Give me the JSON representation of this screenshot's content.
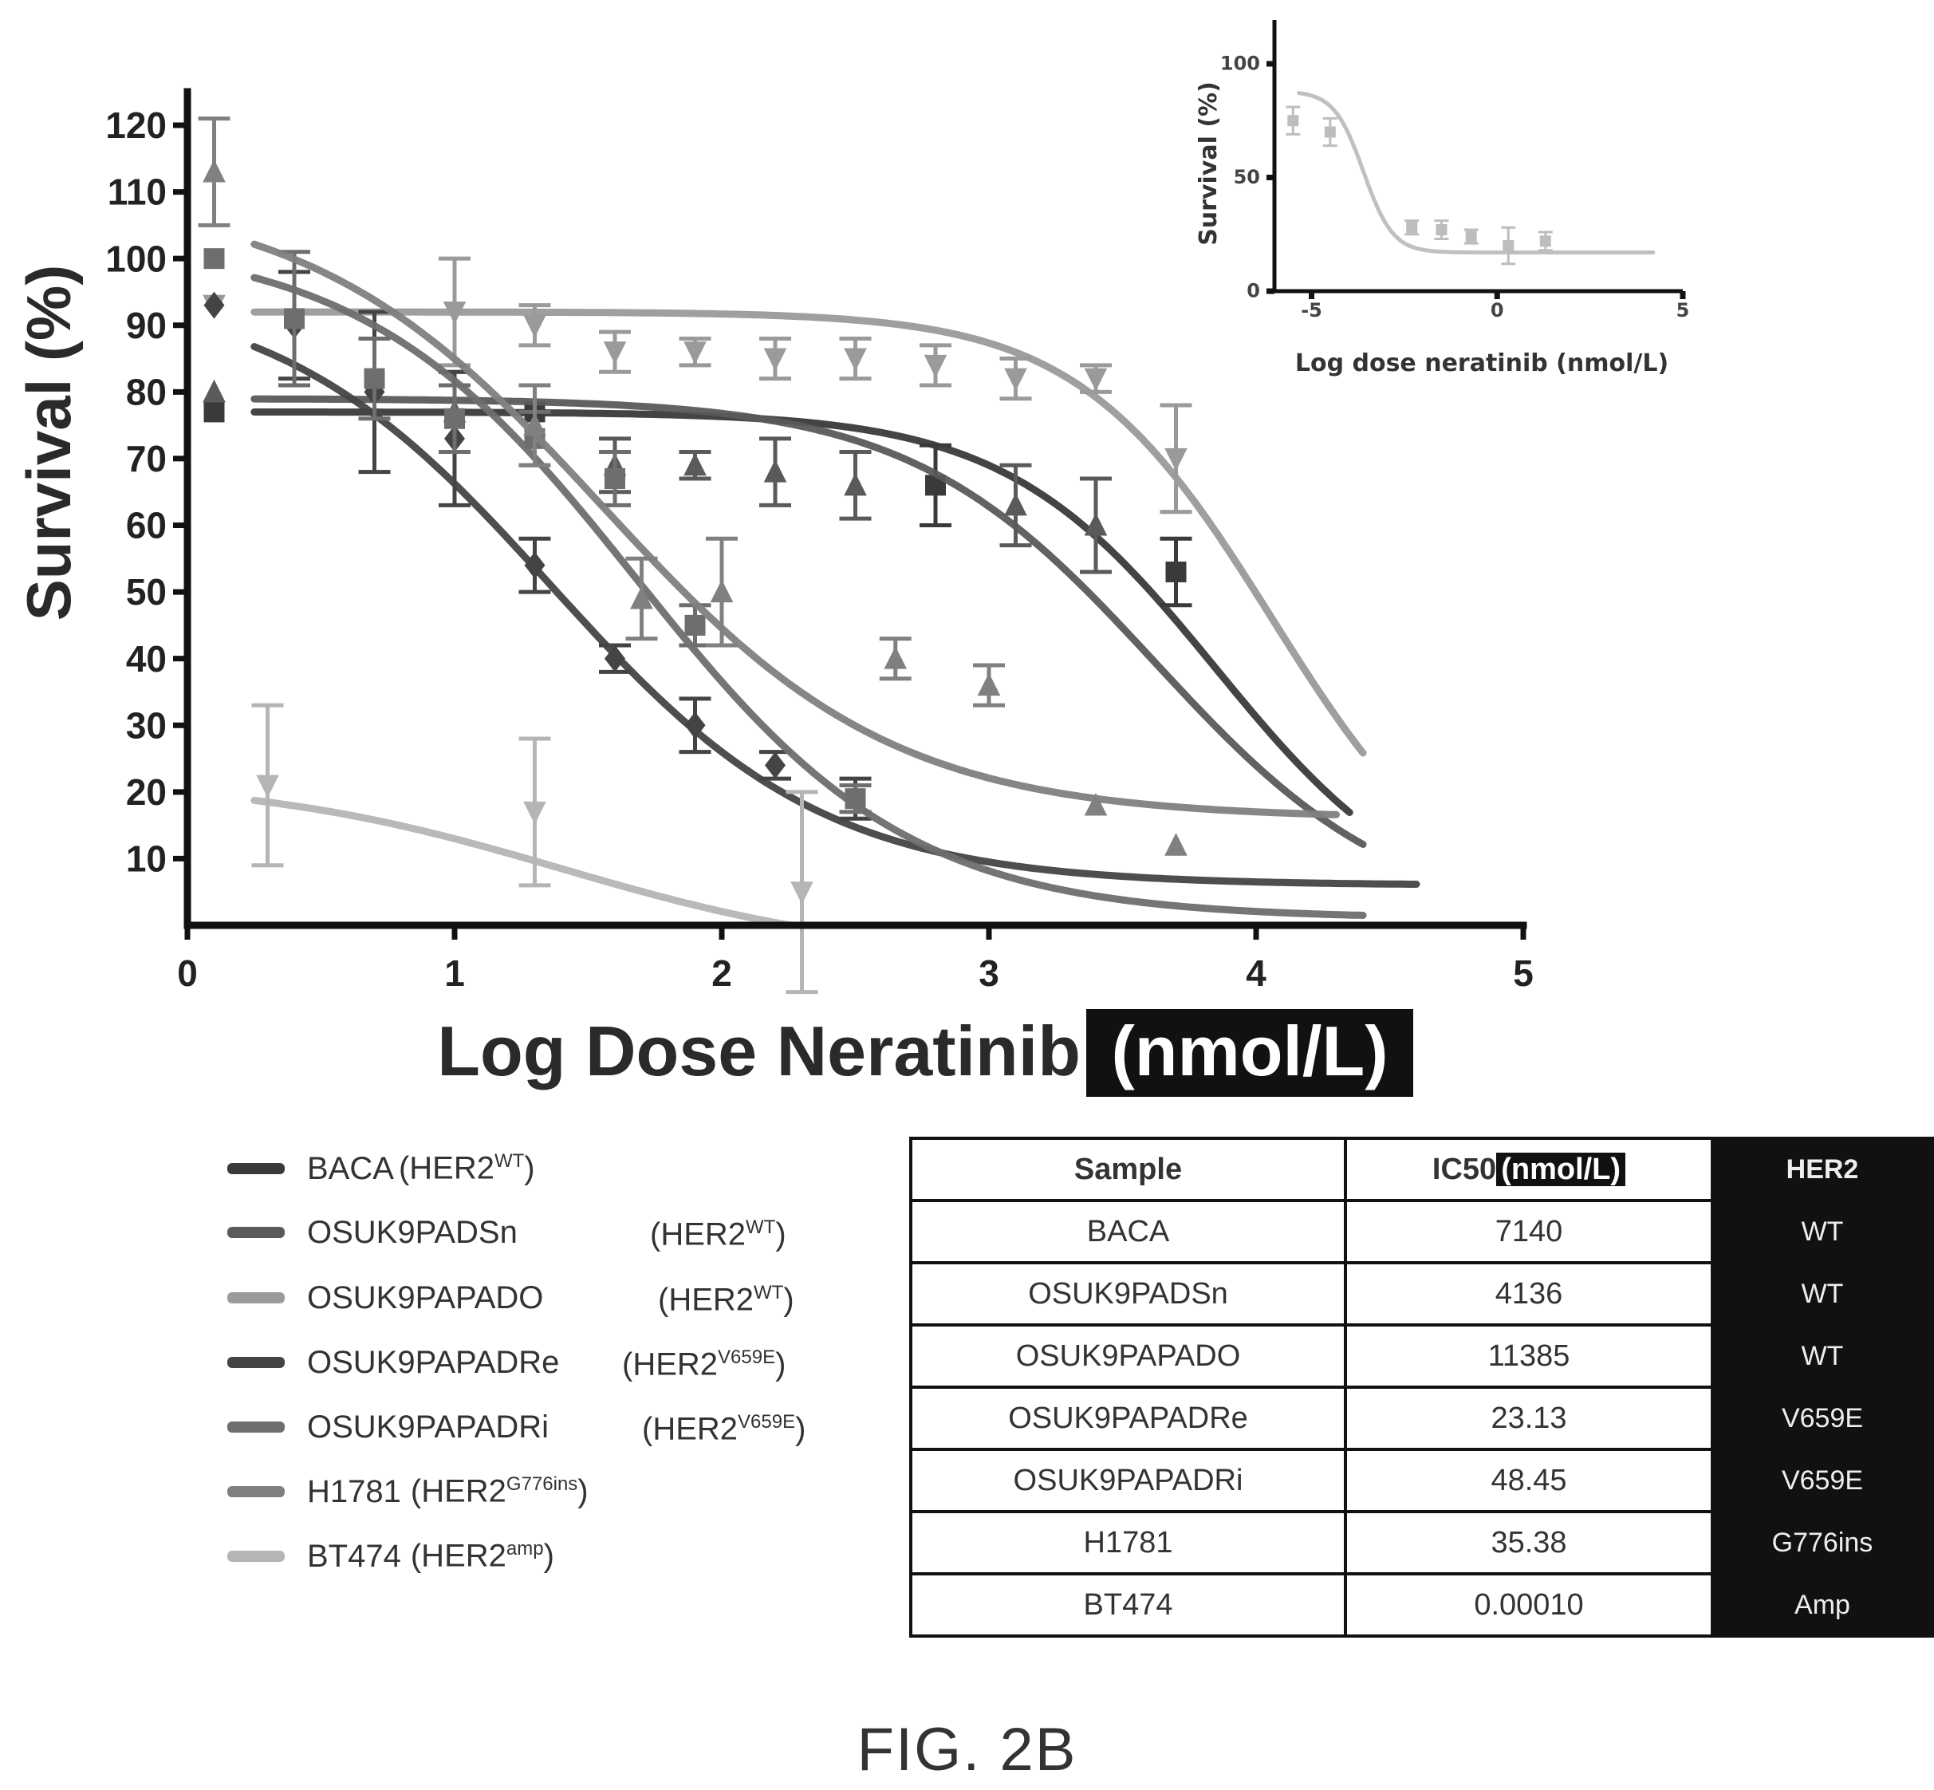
{
  "figure_label": "FIG. 2B",
  "chart_data": [
    {
      "type": "line",
      "xlabel": "Log Dose Neratinib",
      "xlabel_highlight": "(nmol/L)",
      "ylabel": "Survival (%)",
      "xlim": [
        0,
        5
      ],
      "ylim": [
        0,
        120
      ],
      "x_ticks": [
        "0",
        "1",
        "2",
        "3",
        "4",
        "5"
      ],
      "y_ticks": [
        "10",
        "20",
        "30",
        "40",
        "50",
        "60",
        "70",
        "80",
        "90",
        "100",
        "110",
        "120"
      ],
      "series": [
        {
          "name": "BACA",
          "color": "#3a3a3a",
          "bottom": 0,
          "top": 77,
          "logic50": 3.85,
          "hill": 1.1,
          "x_end": 4.35,
          "points": [
            {
              "x": 0.1,
              "y": 77,
              "err": 0
            },
            {
              "x": 1.3,
              "y": 77,
              "err": 0
            },
            {
              "x": 2.8,
              "y": 66,
              "err": 6
            },
            {
              "x": 3.7,
              "y": 53,
              "err": 5
            }
          ]
        },
        {
          "name": "OSUK9PADSn",
          "color": "#5a5a5a",
          "bottom": 0,
          "top": 79,
          "logic50": 3.62,
          "hill": 0.95,
          "x_end": 4.4,
          "points": [
            {
              "x": 0.1,
              "y": 80,
              "err": 0
            },
            {
              "x": 1.0,
              "y": 77,
              "err": 6
            },
            {
              "x": 1.6,
              "y": 69,
              "err": 4
            },
            {
              "x": 1.9,
              "y": 69,
              "err": 2
            },
            {
              "x": 2.2,
              "y": 68,
              "err": 5
            },
            {
              "x": 2.5,
              "y": 66,
              "err": 5
            },
            {
              "x": 3.1,
              "y": 63,
              "err": 6
            },
            {
              "x": 3.4,
              "y": 60,
              "err": 7
            }
          ]
        },
        {
          "name": "OSUK9PAPADO",
          "color": "#9a9a9a",
          "bottom": 0,
          "top": 92,
          "logic50": 4.06,
          "hill": 1.2,
          "x_end": 4.4,
          "points": [
            {
              "x": 0.1,
              "y": 93,
              "err": 0
            },
            {
              "x": 1.0,
              "y": 92,
              "err": 8
            },
            {
              "x": 1.3,
              "y": 90,
              "err": 3
            },
            {
              "x": 1.6,
              "y": 86,
              "err": 3
            },
            {
              "x": 1.9,
              "y": 86,
              "err": 2
            },
            {
              "x": 2.2,
              "y": 85,
              "err": 3
            },
            {
              "x": 2.5,
              "y": 85,
              "err": 3
            },
            {
              "x": 2.8,
              "y": 84,
              "err": 3
            },
            {
              "x": 3.1,
              "y": 82,
              "err": 3
            },
            {
              "x": 3.4,
              "y": 82,
              "err": 2
            },
            {
              "x": 3.7,
              "y": 70,
              "err": 8
            }
          ]
        },
        {
          "name": "OSUK9PAPADRe",
          "color": "#444444",
          "bottom": 6,
          "top": 96,
          "logic50": 1.36,
          "hill": 0.85,
          "x_end": 4.6,
          "points": [
            {
              "x": 0.1,
              "y": 93,
              "err": 0
            },
            {
              "x": 0.4,
              "y": 90,
              "err": 8
            },
            {
              "x": 0.7,
              "y": 80,
              "err": 12
            },
            {
              "x": 1.0,
              "y": 73,
              "err": 10
            },
            {
              "x": 1.3,
              "y": 54,
              "err": 4
            },
            {
              "x": 1.6,
              "y": 40,
              "err": 2
            },
            {
              "x": 1.9,
              "y": 30,
              "err": 4
            },
            {
              "x": 2.2,
              "y": 24,
              "err": 2
            },
            {
              "x": 2.5,
              "y": 19,
              "err": 3
            }
          ]
        },
        {
          "name": "OSUK9PAPADRi",
          "color": "#6e6e6e",
          "bottom": 1,
          "top": 103,
          "logic50": 1.68,
          "hill": 0.85,
          "x_end": 4.4,
          "points": [
            {
              "x": 0.1,
              "y": 100,
              "err": 0
            },
            {
              "x": 0.4,
              "y": 91,
              "err": 10
            },
            {
              "x": 0.7,
              "y": 82,
              "err": 6
            },
            {
              "x": 1.0,
              "y": 76,
              "err": 5
            },
            {
              "x": 1.3,
              "y": 73,
              "err": 4
            },
            {
              "x": 1.6,
              "y": 67,
              "err": 4
            },
            {
              "x": 1.9,
              "y": 45,
              "err": 3
            },
            {
              "x": 2.5,
              "y": 19,
              "err": 2
            }
          ]
        },
        {
          "name": "H1781",
          "color": "#808080",
          "bottom": 16,
          "top": 110,
          "logic50": 1.55,
          "hill": 0.8,
          "x_end": 4.3,
          "points": [
            {
              "x": 0.1,
              "y": 113,
              "err": 8
            },
            {
              "x": 1.3,
              "y": 75,
              "err": 6
            },
            {
              "x": 1.7,
              "y": 49,
              "err": 6
            },
            {
              "x": 2.0,
              "y": 50,
              "err": 8
            },
            {
              "x": 2.65,
              "y": 40,
              "err": 3
            },
            {
              "x": 3.0,
              "y": 36,
              "err": 3
            },
            {
              "x": 3.4,
              "y": 18,
              "err": 0
            },
            {
              "x": 3.7,
              "y": 12,
              "err": 0
            }
          ]
        },
        {
          "name": "BT474",
          "color": "#b5b5b5",
          "bottom": -5,
          "top": 22,
          "logic50": 1.4,
          "hill": 0.75,
          "x_end": 2.75,
          "points": [
            {
              "x": 0.3,
              "y": 21,
              "err": 12
            },
            {
              "x": 1.3,
              "y": 17,
              "err": 11
            },
            {
              "x": 2.3,
              "y": 5,
              "err": 15
            }
          ]
        }
      ]
    },
    {
      "type": "line",
      "xlabel": "Log dose neratinib (nmol/L)",
      "ylabel": "Survival (%)",
      "xlim": [
        -6,
        5
      ],
      "ylim": [
        0,
        100
      ],
      "x_ticks": [
        "-5",
        "0",
        "5"
      ],
      "y_ticks": [
        "0",
        "50",
        "100"
      ],
      "series": [
        {
          "name": "BT474",
          "color": "#bdbdbd",
          "bottom": 17,
          "top": 88,
          "logic50": -3.6,
          "hill": 1.1,
          "x_end": 4.2,
          "points": [
            {
              "x": -5.5,
              "y": 75,
              "err": 6
            },
            {
              "x": -4.5,
              "y": 70,
              "err": 6
            },
            {
              "x": -2.3,
              "y": 28,
              "err": 3
            },
            {
              "x": -1.5,
              "y": 27,
              "err": 4
            },
            {
              "x": -0.7,
              "y": 24,
              "err": 3
            },
            {
              "x": 0.3,
              "y": 20,
              "err": 8
            },
            {
              "x": 1.3,
              "y": 22,
              "err": 4
            }
          ]
        }
      ]
    }
  ],
  "legend": [
    {
      "name": "BACA",
      "genotype_base": "(HER2",
      "genotype_sup": "WT",
      "color": "#3a3a3a"
    },
    {
      "name": "OSUK9PADSn",
      "genotype_base": "(HER2",
      "genotype_sup": "WT",
      "color": "#5a5a5a"
    },
    {
      "name": "OSUK9PAPADO",
      "genotype_base": "(HER2",
      "genotype_sup": "WT",
      "color": "#9a9a9a"
    },
    {
      "name": "OSUK9PAPADRe",
      "genotype_base": "(HER2",
      "genotype_sup": "V659E",
      "color": "#444444"
    },
    {
      "name": "OSUK9PAPADRi",
      "genotype_base": "(HER2",
      "genotype_sup": "V659E",
      "color": "#6e6e6e"
    },
    {
      "name": "H1781",
      "genotype_base": "(HER2",
      "genotype_sup": "G776ins",
      "color": "#808080"
    },
    {
      "name": "BT474",
      "genotype_base": "(HER2",
      "genotype_sup": "amp",
      "color": "#b5b5b5"
    }
  ],
  "table": {
    "headers": {
      "sample": "Sample",
      "ic50": "IC50",
      "ic50_unit": "(nmol/L)",
      "her2": "HER2"
    },
    "rows": [
      {
        "sample": "BACA",
        "ic50": "7140",
        "her2": "WT"
      },
      {
        "sample": "OSUK9PADSn",
        "ic50": "4136",
        "her2": "WT"
      },
      {
        "sample": "OSUK9PAPADO",
        "ic50": "11385",
        "her2": "WT"
      },
      {
        "sample": "OSUK9PAPADRe",
        "ic50": "23.13",
        "her2": "V659E"
      },
      {
        "sample": "OSUK9PAPADRi",
        "ic50": "48.45",
        "her2": "V659E"
      },
      {
        "sample": "H1781",
        "ic50": "35.38",
        "her2": "G776ins"
      },
      {
        "sample": "BT474",
        "ic50": "0.00010",
        "her2": "Amp"
      }
    ]
  }
}
